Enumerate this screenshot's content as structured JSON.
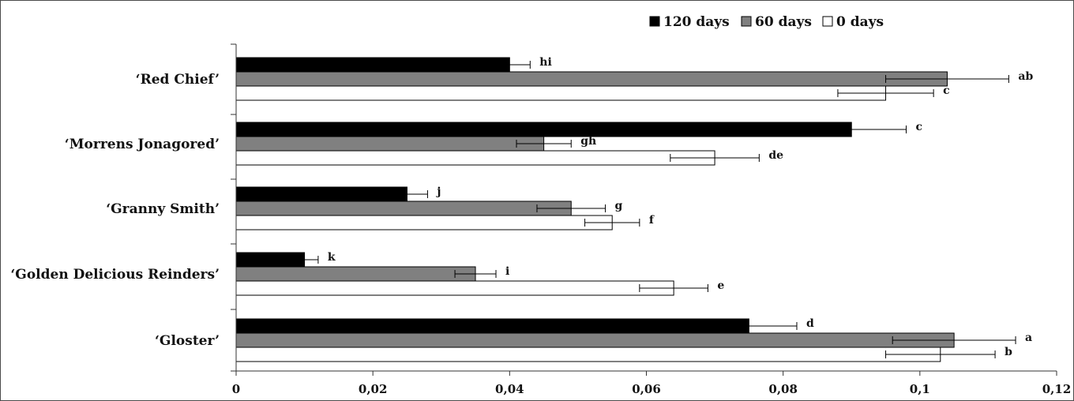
{
  "chart_data": {
    "type": "bar",
    "orientation": "horizontal",
    "title": "",
    "xlabel": "",
    "ylabel": "",
    "xlim": [
      0,
      0.12
    ],
    "xticks": [
      0,
      0.02,
      0.04,
      0.06,
      0.08,
      0.1,
      0.12
    ],
    "xtick_labels": [
      "0",
      "0,02",
      "0,04",
      "0,06",
      "0,08",
      "0,1",
      "0,12"
    ],
    "grid": false,
    "legend_position": "top-right",
    "categories": [
      "‘Red Chief’",
      "‘Morrens Jonagored’",
      "‘Granny Smith’",
      "‘Golden Delicious Reinders’",
      "‘Gloster’"
    ],
    "series": [
      {
        "name": "120 days",
        "color": "#000000",
        "values": [
          0.04,
          0.09,
          0.025,
          0.01,
          0.075
        ],
        "errors": [
          0.003,
          0.008,
          0.003,
          0.002,
          0.007
        ],
        "labels": [
          "hi",
          "c",
          "j",
          "k",
          "d"
        ]
      },
      {
        "name": "60 days",
        "color": "#808080",
        "values": [
          0.104,
          0.045,
          0.049,
          0.035,
          0.105
        ],
        "errors": [
          0.009,
          0.004,
          0.005,
          0.003,
          0.009
        ],
        "labels": [
          "ab",
          "gh",
          "g",
          "i",
          "a"
        ]
      },
      {
        "name": "0 days",
        "color": "#ffffff",
        "values": [
          0.095,
          0.07,
          0.055,
          0.064,
          0.103
        ],
        "errors": [
          0.007,
          0.0065,
          0.004,
          0.005,
          0.008
        ],
        "labels": [
          "c",
          "de",
          "f",
          "e",
          "b"
        ]
      }
    ]
  }
}
